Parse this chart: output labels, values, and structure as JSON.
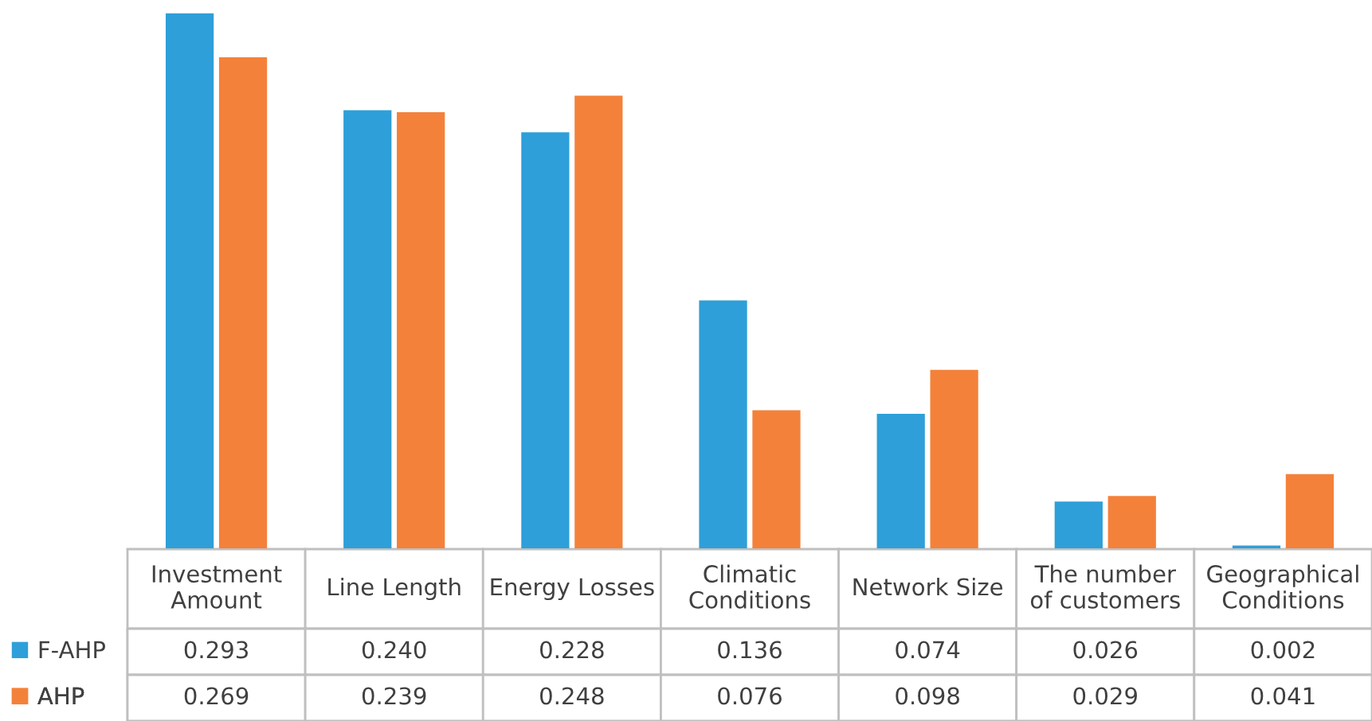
{
  "chart_data": {
    "type": "bar",
    "categories": [
      "Investment Amount",
      "Line Length",
      "Energy Losses",
      "Climatic Conditions",
      "Network Size",
      "The number of customers",
      "Geographical Conditions"
    ],
    "series": [
      {
        "name": "F-AHP",
        "color": "#2e9fd9",
        "values": [
          0.293,
          0.24,
          0.228,
          0.136,
          0.074,
          0.026,
          0.002
        ],
        "value_labels": [
          "0.293",
          "0.240",
          "0.228",
          "0.136",
          "0.074",
          "0.026",
          "0.002"
        ]
      },
      {
        "name": "AHP",
        "color": "#f4813a",
        "values": [
          0.269,
          0.239,
          0.248,
          0.076,
          0.098,
          0.029,
          0.041
        ],
        "value_labels": [
          "0.269",
          "0.239",
          "0.248",
          "0.076",
          "0.098",
          "0.029",
          "0.041"
        ]
      }
    ],
    "legend": "bottom"
  }
}
